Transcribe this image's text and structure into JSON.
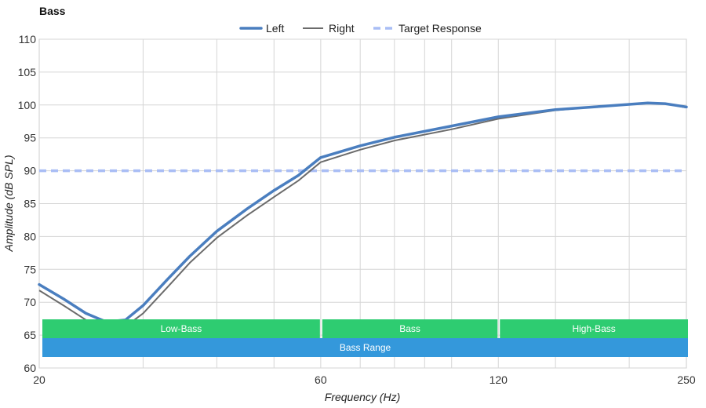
{
  "chart_data": {
    "type": "line",
    "title": "Bass",
    "xlabel": "Frequency (Hz)",
    "ylabel": "Amplitude (dB SPL)",
    "x_scale": "log",
    "xlim": [
      20,
      250
    ],
    "ylim": [
      60,
      110
    ],
    "x_ticks": [
      20,
      60,
      120,
      250
    ],
    "y_ticks": [
      60,
      65,
      70,
      75,
      80,
      85,
      90,
      95,
      100,
      105,
      110
    ],
    "legend": {
      "placement": "top-center"
    },
    "grid": true,
    "series": [
      {
        "name": "Left",
        "style": "thick",
        "color": "#4a7ebf",
        "points": [
          [
            20,
            72.7
          ],
          [
            22,
            70.5
          ],
          [
            24,
            68.3
          ],
          [
            26,
            67.0
          ],
          [
            28,
            67.3
          ],
          [
            30,
            69.5
          ],
          [
            33,
            73.5
          ],
          [
            36,
            77.0
          ],
          [
            40,
            80.8
          ],
          [
            45,
            84.2
          ],
          [
            50,
            87.0
          ],
          [
            55,
            89.3
          ],
          [
            60,
            92.0
          ],
          [
            70,
            93.8
          ],
          [
            80,
            95.1
          ],
          [
            100,
            96.8
          ],
          [
            120,
            98.2
          ],
          [
            150,
            99.3
          ],
          [
            180,
            99.8
          ],
          [
            200,
            100.1
          ],
          [
            215,
            100.3
          ],
          [
            230,
            100.2
          ],
          [
            250,
            99.7
          ]
        ]
      },
      {
        "name": "Right",
        "style": "thin",
        "color": "#6b6b6b",
        "points": [
          [
            20,
            71.8
          ],
          [
            22,
            69.5
          ],
          [
            24,
            67.3
          ],
          [
            26,
            66.0
          ],
          [
            28,
            66.3
          ],
          [
            30,
            68.3
          ],
          [
            33,
            72.3
          ],
          [
            36,
            76.0
          ],
          [
            40,
            79.8
          ],
          [
            45,
            83.2
          ],
          [
            50,
            86.0
          ],
          [
            55,
            88.5
          ],
          [
            60,
            91.3
          ],
          [
            70,
            93.2
          ],
          [
            80,
            94.6
          ],
          [
            100,
            96.3
          ],
          [
            120,
            97.9
          ],
          [
            150,
            99.2
          ],
          [
            180,
            99.8
          ],
          [
            200,
            100.1
          ],
          [
            215,
            100.3
          ],
          [
            230,
            100.2
          ],
          [
            250,
            99.6
          ]
        ]
      },
      {
        "name": "Target Response",
        "style": "dashed",
        "color": "#a9bdf5",
        "points": [
          [
            20,
            90
          ],
          [
            250,
            90
          ]
        ]
      }
    ],
    "bands": [
      {
        "label": "Low-Bass",
        "from": 20,
        "to": 60,
        "row": 1,
        "color": "#2ecc71"
      },
      {
        "label": "Bass",
        "from": 60,
        "to": 120,
        "row": 1,
        "color": "#2ecc71"
      },
      {
        "label": "High-Bass",
        "from": 120,
        "to": 250,
        "row": 1,
        "color": "#2ecc71"
      },
      {
        "label": "Bass Range",
        "from": 20,
        "to": 250,
        "row": 2,
        "color": "#3498db"
      }
    ]
  }
}
